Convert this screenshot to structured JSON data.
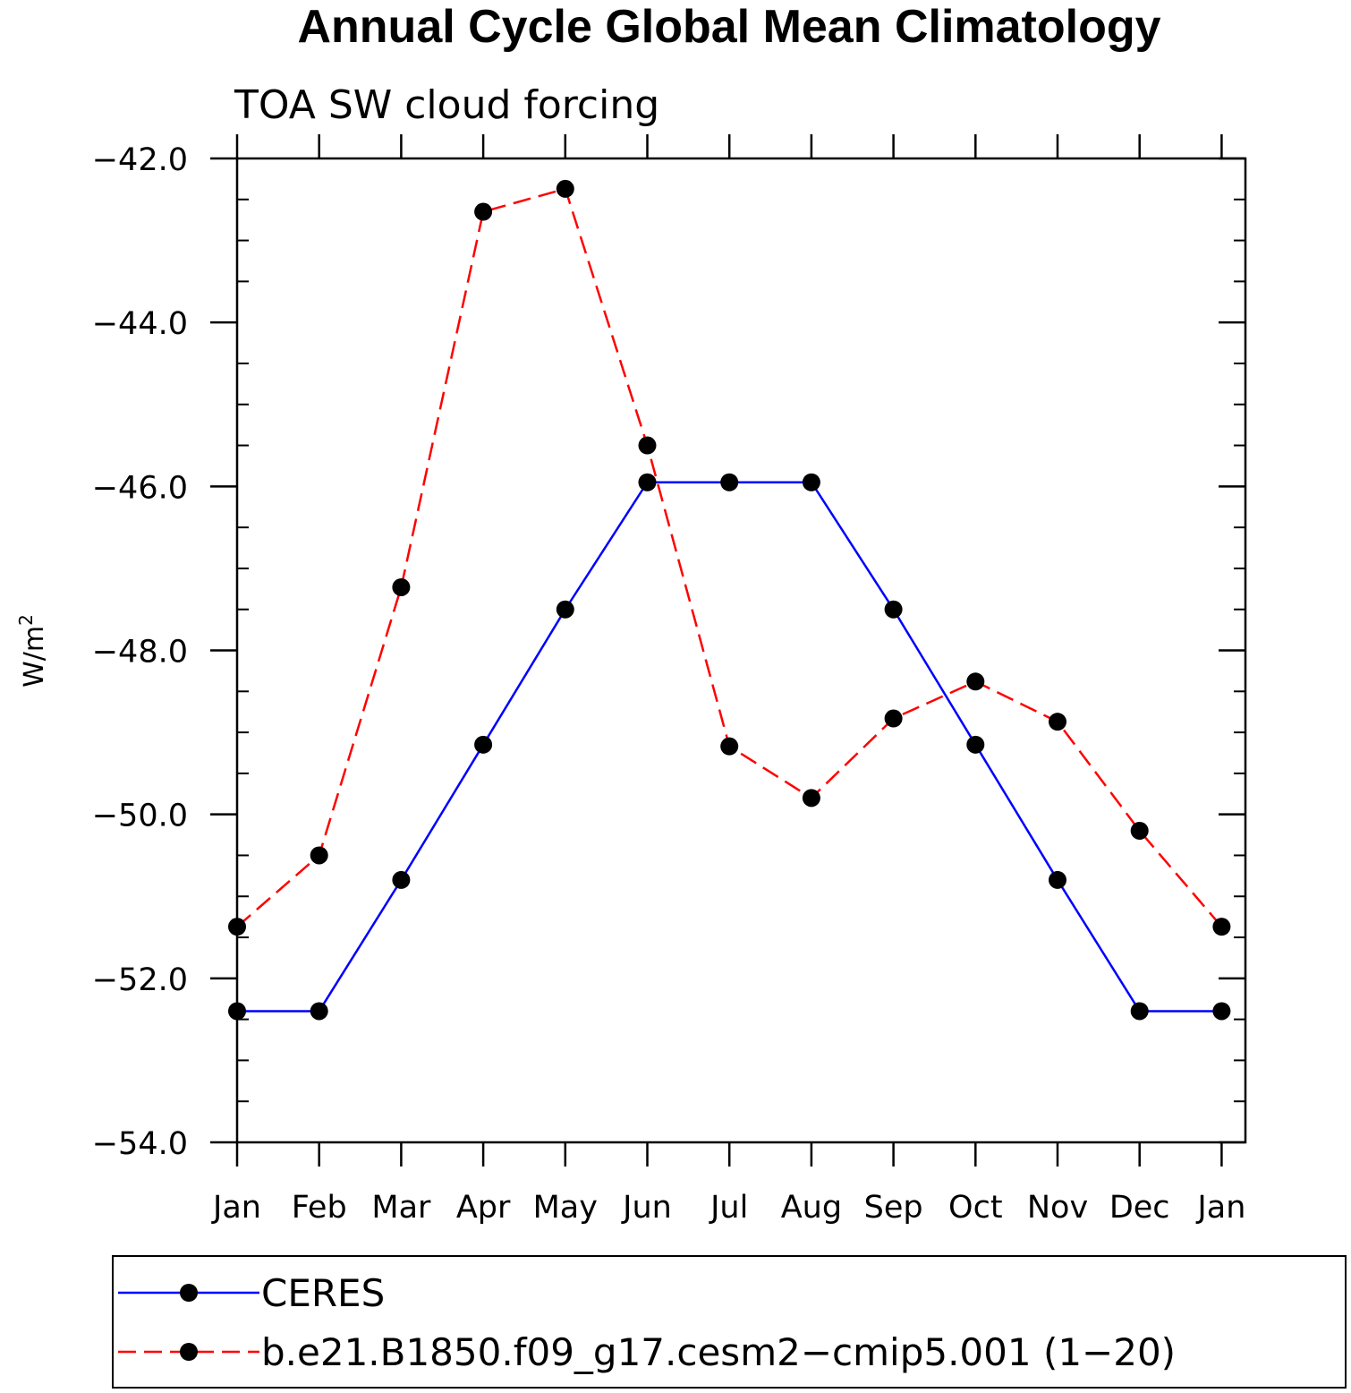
{
  "chart_data": {
    "type": "line",
    "title": "Annual Cycle Global Mean Climatology",
    "subtitle": "TOA SW cloud forcing",
    "ylabel": "W/m",
    "ylabel_sup": "2",
    "xlabel": "",
    "categories": [
      "Jan",
      "Feb",
      "Mar",
      "Apr",
      "May",
      "Jun",
      "Jul",
      "Aug",
      "Sep",
      "Oct",
      "Nov",
      "Dec",
      "Jan"
    ],
    "ylim": [
      -54.0,
      -42.0
    ],
    "yticks": [
      -54.0,
      -52.0,
      -50.0,
      -48.0,
      -46.0,
      -44.0,
      -42.0
    ],
    "ytick_labels": [
      "−54.0",
      "−52.0",
      "−50.0",
      "−48.0",
      "−46.0",
      "−44.0",
      "−42.0"
    ],
    "grid": false,
    "legend_position": "bottom",
    "series": [
      {
        "name": "CERES",
        "color": "#0000ff",
        "dash": "solid",
        "marker": "filled-circle",
        "values": [
          -52.4,
          -52.4,
          -50.8,
          -49.15,
          -47.5,
          -45.95,
          -45.95,
          -45.95,
          -47.5,
          -49.15,
          -50.8,
          -52.4,
          -52.4
        ]
      },
      {
        "name": "b.e21.B1850.f09_g17.cesm2−cmip5.001 (1−20)",
        "color": "#ff0000",
        "dash": "dashed",
        "marker": "filled-circle",
        "values": [
          -51.37,
          -50.5,
          -47.23,
          -42.65,
          -42.37,
          -45.5,
          -49.17,
          -49.8,
          -48.83,
          -48.38,
          -48.87,
          -50.2,
          -51.37
        ]
      }
    ]
  }
}
